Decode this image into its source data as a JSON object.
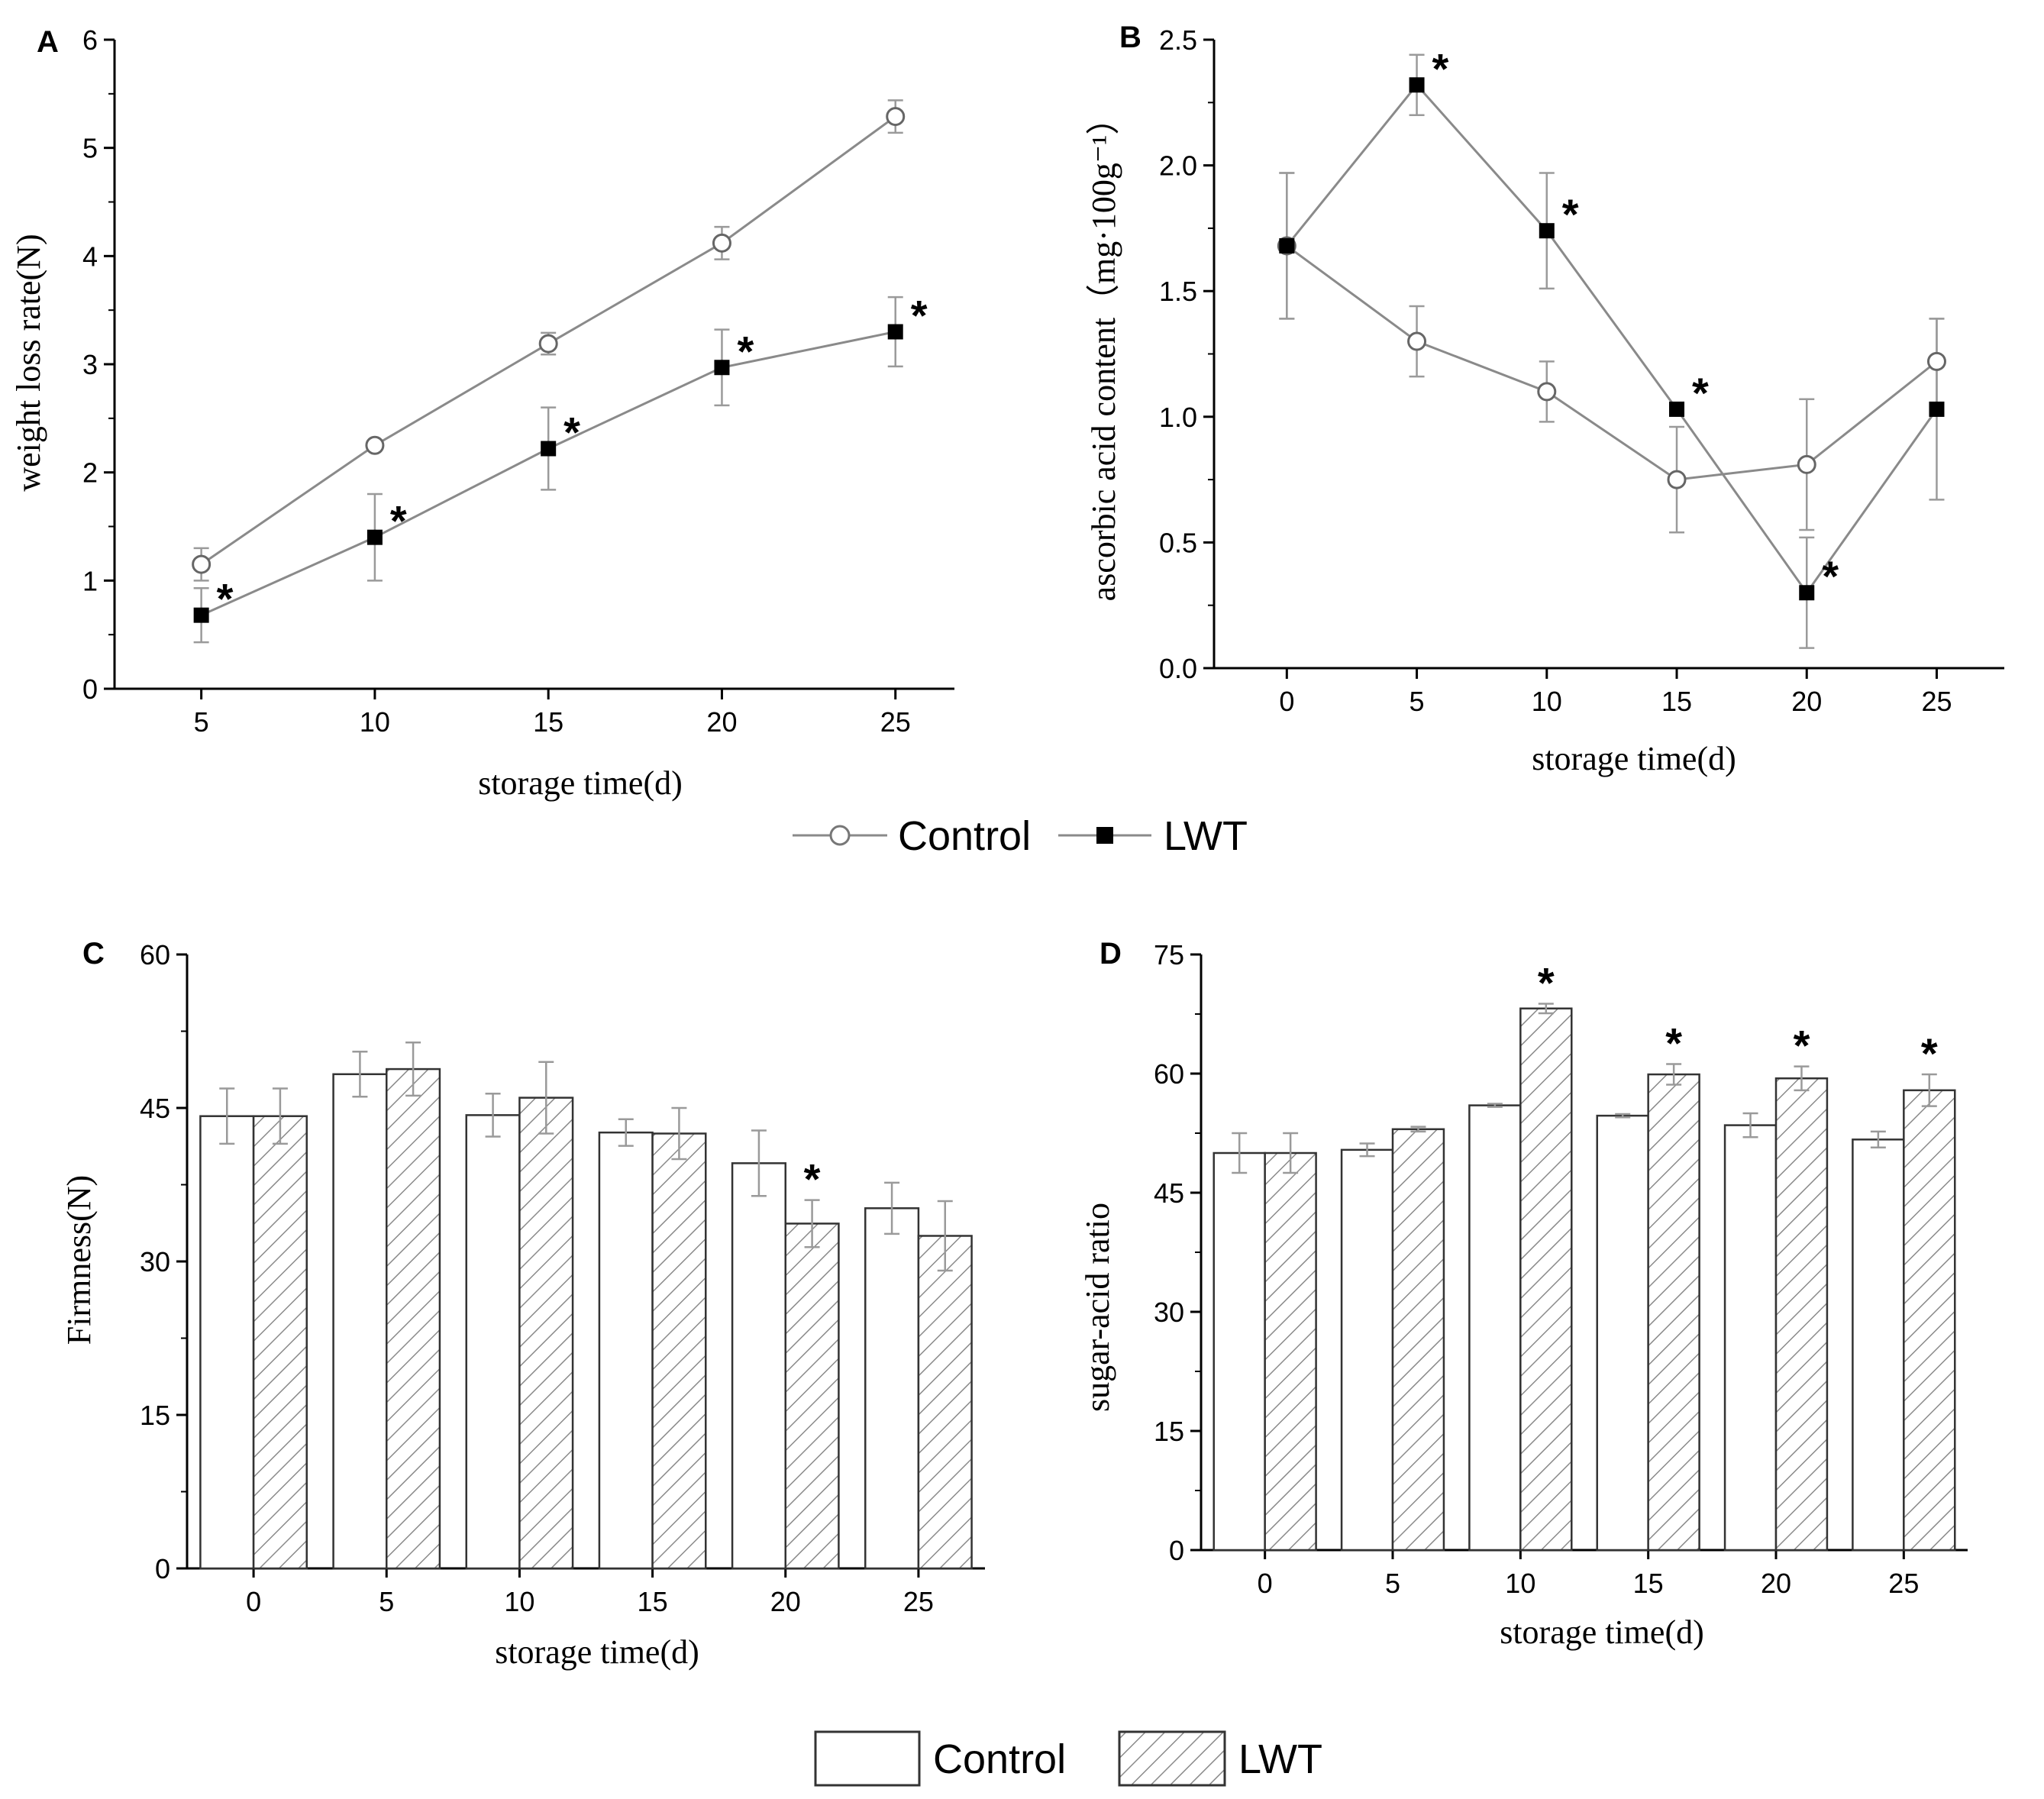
{
  "colors": {
    "axis": "#000000",
    "line": "#8a8a8a",
    "errorbar": "#9a9a9a",
    "hatch": "#8a8a8a",
    "bar_edge": "#333333"
  },
  "legend_top": {
    "control": "Control",
    "lwt": "LWT"
  },
  "legend_bottom": {
    "control": "Control",
    "lwt": "LWT"
  },
  "chart_data": [
    {
      "panel": "A",
      "type": "line",
      "x": [
        5,
        10,
        15,
        20,
        25
      ],
      "xticks": [
        "5",
        "10",
        "15",
        "20",
        "25"
      ],
      "xlabel": "storage time(d)",
      "ylabel": "weight loss rate(N)",
      "ylim": [
        0,
        6
      ],
      "yticks": [
        "0",
        "1",
        "2",
        "3",
        "4",
        "5",
        "6"
      ],
      "series": [
        {
          "name": "Control",
          "values": [
            1.15,
            2.25,
            3.19,
            4.12,
            5.29
          ],
          "errors": [
            0.15,
            0.03,
            0.1,
            0.15,
            0.15
          ]
        },
        {
          "name": "LWT",
          "values": [
            0.68,
            1.4,
            2.22,
            2.97,
            3.3
          ],
          "errors": [
            0.25,
            0.4,
            0.38,
            0.35,
            0.32
          ],
          "significant": [
            true,
            true,
            true,
            true,
            true
          ]
        }
      ]
    },
    {
      "panel": "B",
      "type": "line",
      "x": [
        0,
        5,
        10,
        15,
        20,
        25
      ],
      "xticks": [
        "0",
        "5",
        "10",
        "15",
        "20",
        "25"
      ],
      "xlabel": "storage time(d)",
      "ylabel": "ascorbic acid content（mg·100g⁻¹）",
      "ylim": [
        0,
        2.5
      ],
      "yticks": [
        "0.0",
        "0.5",
        "1.0",
        "1.5",
        "2.0",
        "2.5"
      ],
      "series": [
        {
          "name": "Control",
          "values": [
            1.68,
            1.3,
            1.1,
            0.75,
            0.81,
            1.22
          ],
          "errors": [
            0.29,
            0.14,
            0.12,
            0.21,
            0.26,
            0.17
          ]
        },
        {
          "name": "LWT",
          "values": [
            1.68,
            2.32,
            1.74,
            1.03,
            0.3,
            1.03
          ],
          "errors": [
            0.29,
            0.12,
            0.23,
            0.0,
            0.22,
            0.36
          ],
          "significant": [
            false,
            true,
            true,
            true,
            true,
            false
          ]
        }
      ]
    },
    {
      "panel": "C",
      "type": "bar",
      "categories": [
        "0",
        "5",
        "10",
        "15",
        "20",
        "25"
      ],
      "xlabel": "storage time(d)",
      "ylabel": "Firmness(N)",
      "ylim": [
        0,
        60
      ],
      "yticks": [
        "0",
        "15",
        "30",
        "45",
        "60"
      ],
      "series": [
        {
          "name": "Control",
          "values": [
            44.2,
            48.3,
            44.3,
            42.6,
            39.6,
            35.2
          ],
          "errors": [
            2.7,
            2.2,
            2.1,
            1.3,
            3.2,
            2.5
          ]
        },
        {
          "name": "LWT",
          "values": [
            44.2,
            48.8,
            46.0,
            42.5,
            33.7,
            32.5
          ],
          "errors": [
            2.7,
            2.6,
            3.5,
            2.5,
            2.3,
            3.4
          ],
          "significant": [
            false,
            false,
            false,
            false,
            true,
            false
          ]
        }
      ]
    },
    {
      "panel": "D",
      "type": "bar",
      "categories": [
        "0",
        "5",
        "10",
        "15",
        "20",
        "25"
      ],
      "xlabel": "storage time(d)",
      "ylabel": "sugar-acid ratio",
      "ylim": [
        0,
        75
      ],
      "yticks": [
        "0",
        "15",
        "30",
        "45",
        "60",
        "75"
      ],
      "series": [
        {
          "name": "Control",
          "values": [
            50.0,
            50.4,
            56.0,
            54.7,
            53.5,
            51.7
          ],
          "errors": [
            2.5,
            0.8,
            0.2,
            0.2,
            1.5,
            1.0
          ]
        },
        {
          "name": "LWT",
          "values": [
            50.0,
            53.0,
            68.2,
            59.9,
            59.4,
            57.9
          ],
          "errors": [
            2.5,
            0.3,
            0.6,
            1.3,
            1.5,
            2.0
          ],
          "significant": [
            false,
            false,
            true,
            true,
            true,
            true
          ]
        }
      ]
    }
  ]
}
